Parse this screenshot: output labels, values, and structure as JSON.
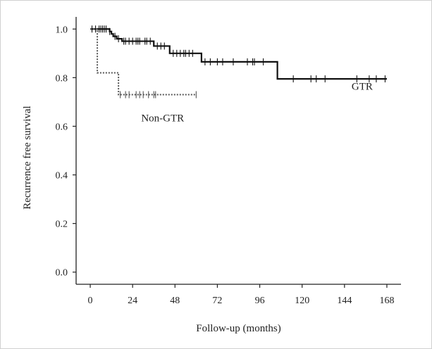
{
  "chart_data": {
    "type": "line",
    "title": "",
    "xlabel": "Follow-up (months)",
    "ylabel": "Recurrence free survival",
    "xlim": [
      -8,
      176
    ],
    "ylim": [
      -0.05,
      1.05
    ],
    "x_ticks": [
      0,
      24,
      48,
      72,
      96,
      120,
      144,
      168
    ],
    "y_ticks": [
      0.0,
      0.2,
      0.4,
      0.6,
      0.8,
      1.0
    ],
    "y_tick_labels": [
      "0.0",
      "0.2",
      "0.4",
      "0.6",
      "0.8",
      "1.0"
    ],
    "grid": false,
    "series": [
      {
        "name": "GTR",
        "style": "solid",
        "color": "#111111",
        "label_at": [
          154,
          0.75
        ],
        "steps": [
          [
            0,
            1.0
          ],
          [
            10,
            1.0
          ],
          [
            11,
            0.99
          ],
          [
            12,
            0.98
          ],
          [
            13,
            0.97
          ],
          [
            15,
            0.96
          ],
          [
            18,
            0.95
          ],
          [
            29,
            0.95
          ],
          [
            36,
            0.93
          ],
          [
            43,
            0.93
          ],
          [
            45,
            0.9
          ],
          [
            52,
            0.9
          ],
          [
            53,
            0.9
          ],
          [
            62,
            0.9
          ],
          [
            63,
            0.865
          ],
          [
            97,
            0.865
          ],
          [
            100,
            0.865
          ],
          [
            106,
            0.865
          ],
          [
            106,
            0.795
          ],
          [
            168,
            0.795
          ]
        ],
        "censored": [
          [
            1,
            1.0
          ],
          [
            3,
            1.0
          ],
          [
            5,
            1.0
          ],
          [
            6,
            1.0
          ],
          [
            7,
            1.0
          ],
          [
            8,
            1.0
          ],
          [
            9,
            1.0
          ],
          [
            11,
            0.99
          ],
          [
            14,
            0.97
          ],
          [
            16,
            0.96
          ],
          [
            19,
            0.95
          ],
          [
            20,
            0.95
          ],
          [
            22,
            0.95
          ],
          [
            24,
            0.95
          ],
          [
            26,
            0.95
          ],
          [
            27,
            0.95
          ],
          [
            28,
            0.95
          ],
          [
            31,
            0.95
          ],
          [
            32,
            0.95
          ],
          [
            34,
            0.95
          ],
          [
            38,
            0.93
          ],
          [
            40,
            0.93
          ],
          [
            42,
            0.93
          ],
          [
            47,
            0.9
          ],
          [
            49,
            0.9
          ],
          [
            51,
            0.9
          ],
          [
            53,
            0.9
          ],
          [
            54,
            0.9
          ],
          [
            56,
            0.9
          ],
          [
            58,
            0.9
          ],
          [
            65,
            0.865
          ],
          [
            68,
            0.865
          ],
          [
            72,
            0.865
          ],
          [
            75,
            0.865
          ],
          [
            81,
            0.865
          ],
          [
            89,
            0.865
          ],
          [
            92,
            0.865
          ],
          [
            93,
            0.865
          ],
          [
            98,
            0.865
          ],
          [
            115,
            0.795
          ],
          [
            125,
            0.795
          ],
          [
            128,
            0.795
          ],
          [
            133,
            0.795
          ],
          [
            151,
            0.795
          ],
          [
            158,
            0.795
          ],
          [
            162,
            0.795
          ],
          [
            167,
            0.795
          ]
        ]
      },
      {
        "name": "Non-GTR",
        "style": "dotted",
        "color": "#555555",
        "label_at": [
          41,
          0.62
        ],
        "steps": [
          [
            0,
            1.0
          ],
          [
            4,
            1.0
          ],
          [
            4,
            0.82
          ],
          [
            16,
            0.82
          ],
          [
            16,
            0.73
          ],
          [
            60,
            0.73
          ]
        ],
        "censored": [
          [
            17,
            0.73
          ],
          [
            20,
            0.73
          ],
          [
            22,
            0.73
          ],
          [
            26,
            0.73
          ],
          [
            28,
            0.73
          ],
          [
            30,
            0.73
          ],
          [
            33,
            0.73
          ],
          [
            36,
            0.73
          ],
          [
            37,
            0.73
          ],
          [
            60,
            0.73
          ]
        ]
      }
    ]
  }
}
